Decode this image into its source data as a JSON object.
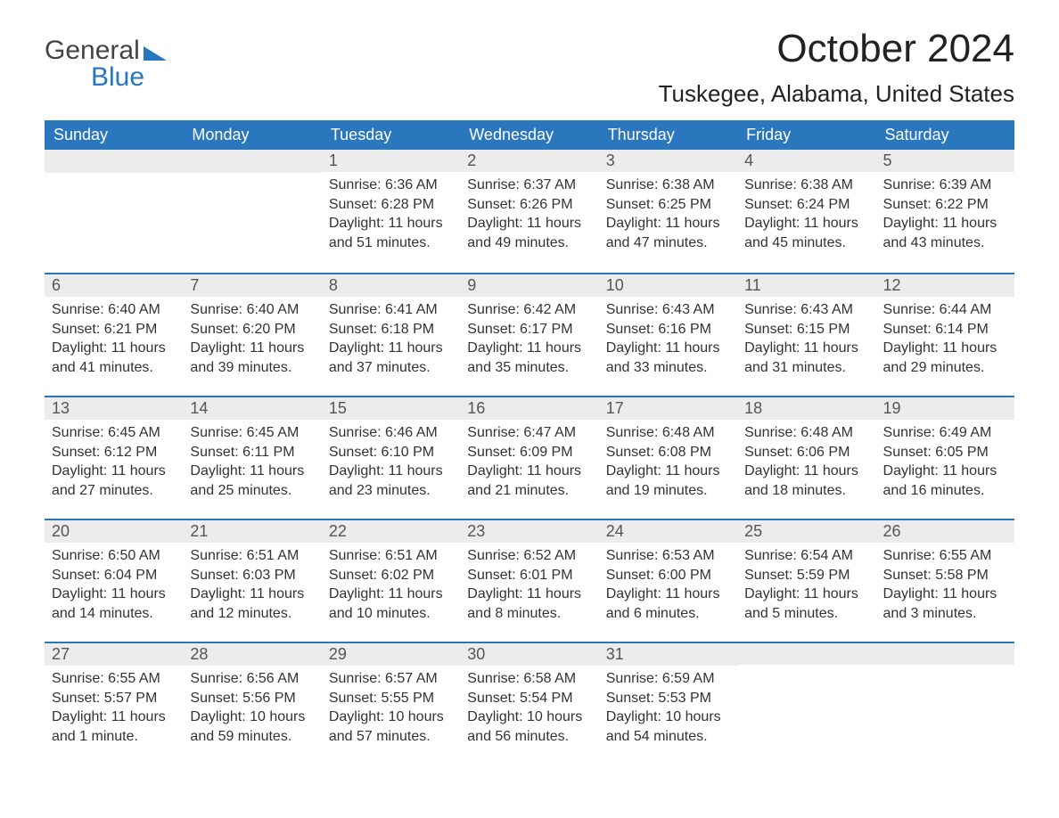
{
  "logo": {
    "word1": "General",
    "word2": "Blue"
  },
  "title": "October 2024",
  "location": "Tuskegee, Alabama, United States",
  "colors": {
    "header_bg": "#2a77bd",
    "header_text": "#ffffff",
    "daynum_bg": "#ececec",
    "daynum_border": "#2a77bd",
    "body_text": "#333333",
    "logo_blue": "#2676c0"
  },
  "weekdays": [
    "Sunday",
    "Monday",
    "Tuesday",
    "Wednesday",
    "Thursday",
    "Friday",
    "Saturday"
  ],
  "weeks": [
    [
      null,
      null,
      {
        "n": "1",
        "sr": "Sunrise: 6:36 AM",
        "ss": "Sunset: 6:28 PM",
        "dl": "Daylight: 11 hours and 51 minutes."
      },
      {
        "n": "2",
        "sr": "Sunrise: 6:37 AM",
        "ss": "Sunset: 6:26 PM",
        "dl": "Daylight: 11 hours and 49 minutes."
      },
      {
        "n": "3",
        "sr": "Sunrise: 6:38 AM",
        "ss": "Sunset: 6:25 PM",
        "dl": "Daylight: 11 hours and 47 minutes."
      },
      {
        "n": "4",
        "sr": "Sunrise: 6:38 AM",
        "ss": "Sunset: 6:24 PM",
        "dl": "Daylight: 11 hours and 45 minutes."
      },
      {
        "n": "5",
        "sr": "Sunrise: 6:39 AM",
        "ss": "Sunset: 6:22 PM",
        "dl": "Daylight: 11 hours and 43 minutes."
      }
    ],
    [
      {
        "n": "6",
        "sr": "Sunrise: 6:40 AM",
        "ss": "Sunset: 6:21 PM",
        "dl": "Daylight: 11 hours and 41 minutes."
      },
      {
        "n": "7",
        "sr": "Sunrise: 6:40 AM",
        "ss": "Sunset: 6:20 PM",
        "dl": "Daylight: 11 hours and 39 minutes."
      },
      {
        "n": "8",
        "sr": "Sunrise: 6:41 AM",
        "ss": "Sunset: 6:18 PM",
        "dl": "Daylight: 11 hours and 37 minutes."
      },
      {
        "n": "9",
        "sr": "Sunrise: 6:42 AM",
        "ss": "Sunset: 6:17 PM",
        "dl": "Daylight: 11 hours and 35 minutes."
      },
      {
        "n": "10",
        "sr": "Sunrise: 6:43 AM",
        "ss": "Sunset: 6:16 PM",
        "dl": "Daylight: 11 hours and 33 minutes."
      },
      {
        "n": "11",
        "sr": "Sunrise: 6:43 AM",
        "ss": "Sunset: 6:15 PM",
        "dl": "Daylight: 11 hours and 31 minutes."
      },
      {
        "n": "12",
        "sr": "Sunrise: 6:44 AM",
        "ss": "Sunset: 6:14 PM",
        "dl": "Daylight: 11 hours and 29 minutes."
      }
    ],
    [
      {
        "n": "13",
        "sr": "Sunrise: 6:45 AM",
        "ss": "Sunset: 6:12 PM",
        "dl": "Daylight: 11 hours and 27 minutes."
      },
      {
        "n": "14",
        "sr": "Sunrise: 6:45 AM",
        "ss": "Sunset: 6:11 PM",
        "dl": "Daylight: 11 hours and 25 minutes."
      },
      {
        "n": "15",
        "sr": "Sunrise: 6:46 AM",
        "ss": "Sunset: 6:10 PM",
        "dl": "Daylight: 11 hours and 23 minutes."
      },
      {
        "n": "16",
        "sr": "Sunrise: 6:47 AM",
        "ss": "Sunset: 6:09 PM",
        "dl": "Daylight: 11 hours and 21 minutes."
      },
      {
        "n": "17",
        "sr": "Sunrise: 6:48 AM",
        "ss": "Sunset: 6:08 PM",
        "dl": "Daylight: 11 hours and 19 minutes."
      },
      {
        "n": "18",
        "sr": "Sunrise: 6:48 AM",
        "ss": "Sunset: 6:06 PM",
        "dl": "Daylight: 11 hours and 18 minutes."
      },
      {
        "n": "19",
        "sr": "Sunrise: 6:49 AM",
        "ss": "Sunset: 6:05 PM",
        "dl": "Daylight: 11 hours and 16 minutes."
      }
    ],
    [
      {
        "n": "20",
        "sr": "Sunrise: 6:50 AM",
        "ss": "Sunset: 6:04 PM",
        "dl": "Daylight: 11 hours and 14 minutes."
      },
      {
        "n": "21",
        "sr": "Sunrise: 6:51 AM",
        "ss": "Sunset: 6:03 PM",
        "dl": "Daylight: 11 hours and 12 minutes."
      },
      {
        "n": "22",
        "sr": "Sunrise: 6:51 AM",
        "ss": "Sunset: 6:02 PM",
        "dl": "Daylight: 11 hours and 10 minutes."
      },
      {
        "n": "23",
        "sr": "Sunrise: 6:52 AM",
        "ss": "Sunset: 6:01 PM",
        "dl": "Daylight: 11 hours and 8 minutes."
      },
      {
        "n": "24",
        "sr": "Sunrise: 6:53 AM",
        "ss": "Sunset: 6:00 PM",
        "dl": "Daylight: 11 hours and 6 minutes."
      },
      {
        "n": "25",
        "sr": "Sunrise: 6:54 AM",
        "ss": "Sunset: 5:59 PM",
        "dl": "Daylight: 11 hours and 5 minutes."
      },
      {
        "n": "26",
        "sr": "Sunrise: 6:55 AM",
        "ss": "Sunset: 5:58 PM",
        "dl": "Daylight: 11 hours and 3 minutes."
      }
    ],
    [
      {
        "n": "27",
        "sr": "Sunrise: 6:55 AM",
        "ss": "Sunset: 5:57 PM",
        "dl": "Daylight: 11 hours and 1 minute."
      },
      {
        "n": "28",
        "sr": "Sunrise: 6:56 AM",
        "ss": "Sunset: 5:56 PM",
        "dl": "Daylight: 10 hours and 59 minutes."
      },
      {
        "n": "29",
        "sr": "Sunrise: 6:57 AM",
        "ss": "Sunset: 5:55 PM",
        "dl": "Daylight: 10 hours and 57 minutes."
      },
      {
        "n": "30",
        "sr": "Sunrise: 6:58 AM",
        "ss": "Sunset: 5:54 PM",
        "dl": "Daylight: 10 hours and 56 minutes."
      },
      {
        "n": "31",
        "sr": "Sunrise: 6:59 AM",
        "ss": "Sunset: 5:53 PM",
        "dl": "Daylight: 10 hours and 54 minutes."
      },
      null,
      null
    ]
  ]
}
